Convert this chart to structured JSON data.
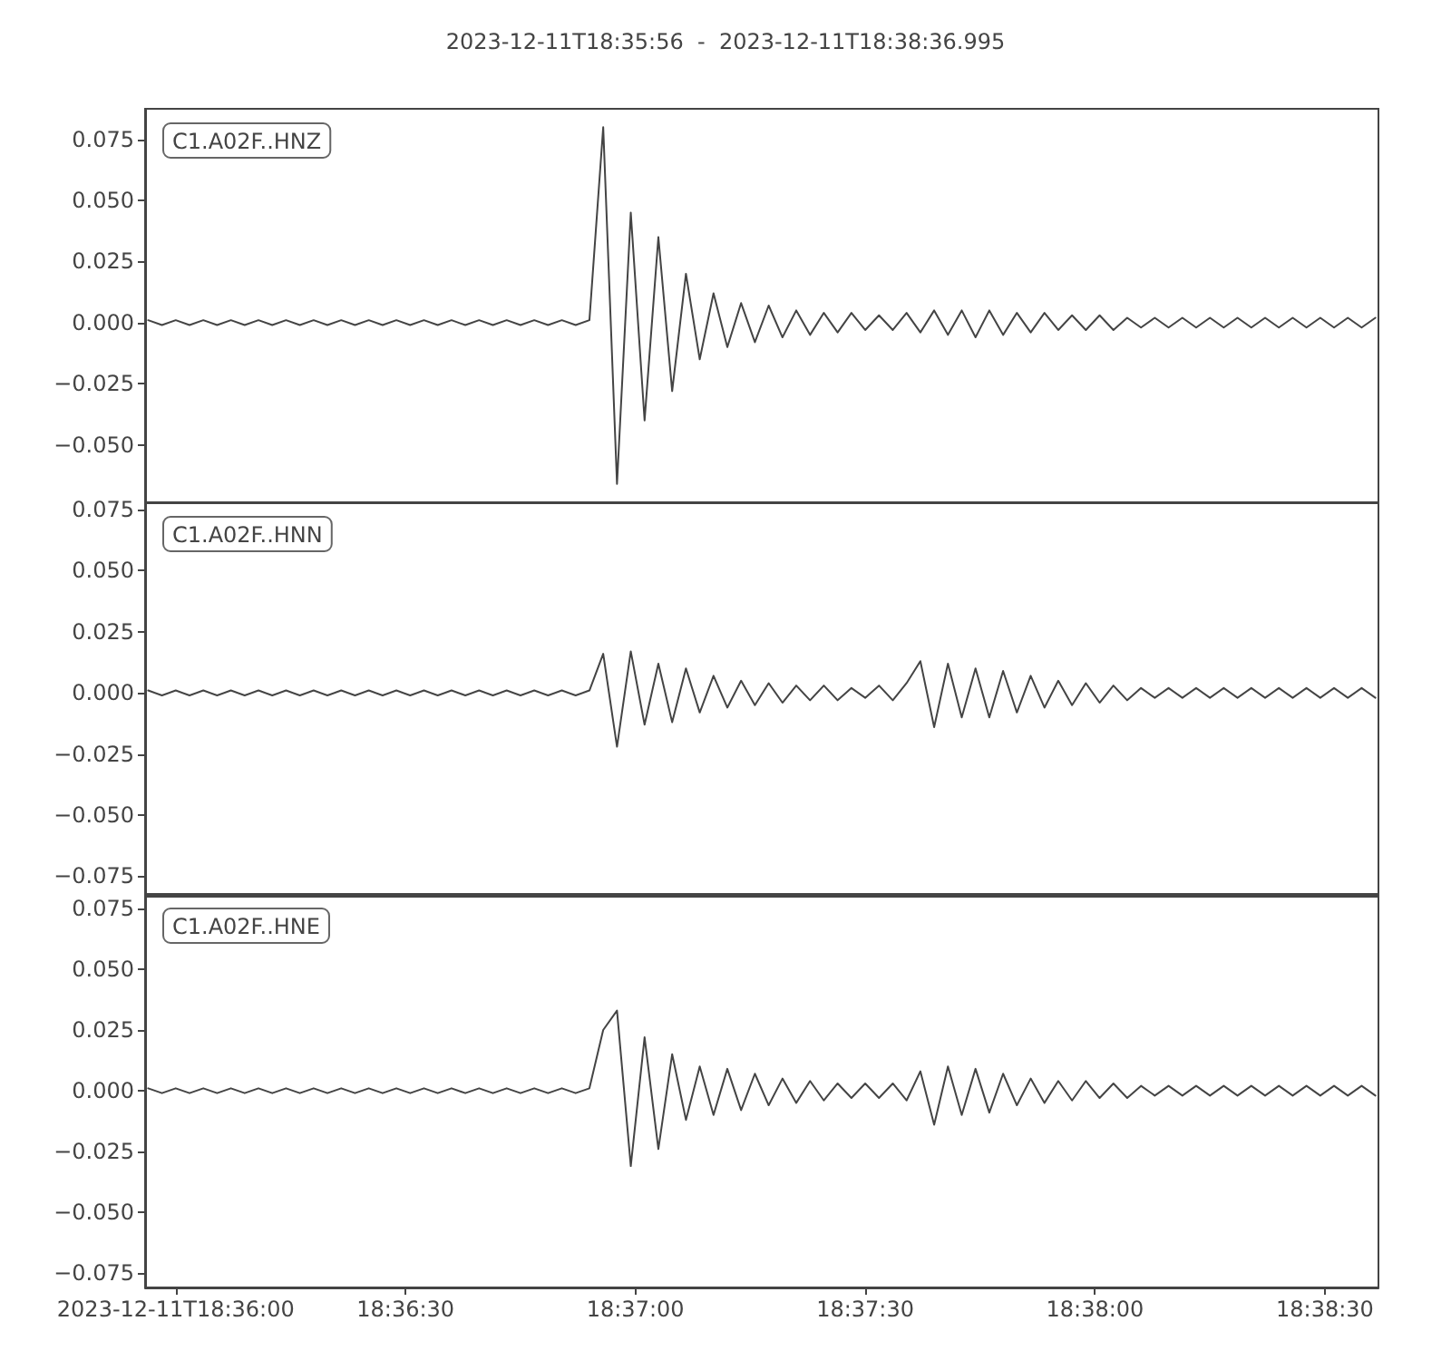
{
  "chart_data": [
    {
      "type": "line",
      "title": "2023-12-11T18:35:56  -  2023-12-11T18:38:36.995",
      "x": [
        18.599,
        18.5995,
        18.6,
        18.6005,
        18.601,
        18.6015,
        18.602,
        18.6025,
        18.603,
        18.6035,
        18.604,
        18.6045,
        18.605,
        18.6055,
        18.606,
        18.6065,
        18.607,
        18.6075,
        18.608,
        18.6085,
        18.609,
        18.6095,
        18.61,
        18.6105,
        18.611,
        18.6115,
        18.612,
        18.6125,
        18.613,
        18.6135,
        18.614,
        18.6145,
        18.615,
        18.6155,
        18.616,
        18.6165,
        18.617,
        18.6175,
        18.618,
        18.6185,
        18.619,
        18.6195,
        18.62,
        18.6205,
        18.621,
        18.6215,
        18.622,
        18.6225,
        18.623,
        18.6235,
        18.624,
        18.6245,
        18.625,
        18.6255,
        18.626,
        18.6265,
        18.627,
        18.6275,
        18.628,
        18.6285,
        18.629,
        18.6295,
        18.63,
        18.6305,
        18.631,
        18.6315,
        18.632,
        18.6325,
        18.633,
        18.6335,
        18.634,
        18.6345,
        18.635,
        18.6355,
        18.636,
        18.6365,
        18.637,
        18.6375,
        18.638,
        18.6385,
        18.639,
        18.6395,
        18.64,
        18.6405,
        18.641,
        18.6415,
        18.642,
        18.6425,
        18.643,
        18.6435
      ],
      "series": [
        {
          "name": "C1.A02F..HNZ",
          "color": "#444444",
          "values": [
            0.001,
            -0.001,
            0.001,
            -0.001,
            0.001,
            -0.001,
            0.001,
            -0.001,
            0.001,
            -0.001,
            0.001,
            -0.001,
            0.001,
            -0.001,
            0.001,
            -0.001,
            0.001,
            -0.001,
            0.001,
            -0.001,
            0.001,
            -0.001,
            0.001,
            -0.001,
            0.001,
            -0.001,
            0.001,
            -0.001,
            0.001,
            -0.001,
            0.001,
            -0.001,
            0.001,
            0.08,
            -0.066,
            0.045,
            -0.04,
            0.035,
            -0.028,
            0.02,
            -0.015,
            0.012,
            -0.01,
            0.008,
            -0.008,
            0.007,
            -0.006,
            0.005,
            -0.005,
            0.004,
            -0.004,
            0.004,
            -0.003,
            0.003,
            -0.003,
            0.004,
            -0.004,
            0.005,
            -0.005,
            0.005,
            -0.006,
            0.005,
            -0.005,
            0.004,
            -0.004,
            0.004,
            -0.003,
            0.003,
            -0.003,
            0.003,
            -0.003,
            0.002,
            -0.002,
            0.002,
            -0.002,
            0.002,
            -0.002,
            0.002,
            -0.002,
            0.002,
            -0.002,
            0.002,
            -0.002,
            0.002,
            -0.002,
            0.002,
            -0.002,
            0.002,
            -0.002,
            0.002
          ]
        }
      ],
      "xlim": [
        18.598889,
        18.64361
      ],
      "ylim": [
        -0.0735,
        0.0875
      ],
      "yticks": [
        {
          "value": -0.05,
          "label": "−0.050"
        },
        {
          "value": -0.025,
          "label": "−0.025"
        },
        {
          "value": 0,
          "label": "0.000"
        },
        {
          "value": 0.025,
          "label": "0.025"
        },
        {
          "value": 0.05,
          "label": "0.050"
        },
        {
          "value": 0.075,
          "label": "0.075"
        }
      ],
      "tick_labels": "y",
      "legend": "top left",
      "grid": false
    },
    {
      "type": "line",
      "x": [
        18.599,
        18.5995,
        18.6,
        18.6005,
        18.601,
        18.6015,
        18.602,
        18.6025,
        18.603,
        18.6035,
        18.604,
        18.6045,
        18.605,
        18.6055,
        18.606,
        18.6065,
        18.607,
        18.6075,
        18.608,
        18.6085,
        18.609,
        18.6095,
        18.61,
        18.6105,
        18.611,
        18.6115,
        18.612,
        18.6125,
        18.613,
        18.6135,
        18.614,
        18.6145,
        18.615,
        18.6155,
        18.616,
        18.6165,
        18.617,
        18.6175,
        18.618,
        18.6185,
        18.619,
        18.6195,
        18.62,
        18.6205,
        18.621,
        18.6215,
        18.622,
        18.6225,
        18.623,
        18.6235,
        18.624,
        18.6245,
        18.625,
        18.6255,
        18.626,
        18.6265,
        18.627,
        18.6275,
        18.628,
        18.6285,
        18.629,
        18.6295,
        18.63,
        18.6305,
        18.631,
        18.6315,
        18.632,
        18.6325,
        18.633,
        18.6335,
        18.634,
        18.6345,
        18.635,
        18.6355,
        18.636,
        18.6365,
        18.637,
        18.6375,
        18.638,
        18.6385,
        18.639,
        18.6395,
        18.64,
        18.6405,
        18.641,
        18.6415,
        18.642,
        18.6425,
        18.643,
        18.6435
      ],
      "series": [
        {
          "name": "C1.A02F..HNN",
          "color": "#444444",
          "values": [
            0.001,
            -0.001,
            0.001,
            -0.001,
            0.001,
            -0.001,
            0.001,
            -0.001,
            0.001,
            -0.001,
            0.001,
            -0.001,
            0.001,
            -0.001,
            0.001,
            -0.001,
            0.001,
            -0.001,
            0.001,
            -0.001,
            0.001,
            -0.001,
            0.001,
            -0.001,
            0.001,
            -0.001,
            0.001,
            -0.001,
            0.001,
            -0.001,
            0.001,
            -0.001,
            0.001,
            0.016,
            -0.022,
            0.017,
            -0.013,
            0.012,
            -0.012,
            0.01,
            -0.008,
            0.007,
            -0.006,
            0.005,
            -0.005,
            0.004,
            -0.004,
            0.003,
            -0.003,
            0.003,
            -0.003,
            0.002,
            -0.002,
            0.003,
            -0.003,
            0.004,
            0.013,
            -0.014,
            0.012,
            -0.01,
            0.01,
            -0.01,
            0.009,
            -0.008,
            0.007,
            -0.006,
            0.005,
            -0.005,
            0.004,
            -0.004,
            0.003,
            -0.003,
            0.002,
            -0.002,
            0.002,
            -0.002,
            0.002,
            -0.002,
            0.002,
            -0.002,
            0.002,
            -0.002,
            0.002,
            -0.002,
            0.002,
            -0.002,
            0.002,
            -0.002,
            0.002,
            -0.002
          ]
        }
      ],
      "xlim": [
        18.598889,
        18.64361
      ],
      "ylim": [
        -0.083,
        0.078
      ],
      "yticks": [
        {
          "value": -0.075,
          "label": "−0.075"
        },
        {
          "value": -0.05,
          "label": "−0.050"
        },
        {
          "value": -0.025,
          "label": "−0.025"
        },
        {
          "value": 0,
          "label": "0.000"
        },
        {
          "value": 0.025,
          "label": "0.025"
        },
        {
          "value": 0.05,
          "label": "0.050"
        },
        {
          "value": 0.075,
          "label": "0.075"
        }
      ],
      "tick_labels": "y",
      "legend": "top left",
      "grid": false
    },
    {
      "type": "line",
      "x": [
        18.599,
        18.5995,
        18.6,
        18.6005,
        18.601,
        18.6015,
        18.602,
        18.6025,
        18.603,
        18.6035,
        18.604,
        18.6045,
        18.605,
        18.6055,
        18.606,
        18.6065,
        18.607,
        18.6075,
        18.608,
        18.6085,
        18.609,
        18.6095,
        18.61,
        18.6105,
        18.611,
        18.6115,
        18.612,
        18.6125,
        18.613,
        18.6135,
        18.614,
        18.6145,
        18.615,
        18.6155,
        18.616,
        18.6165,
        18.617,
        18.6175,
        18.618,
        18.6185,
        18.619,
        18.6195,
        18.62,
        18.6205,
        18.621,
        18.6215,
        18.622,
        18.6225,
        18.623,
        18.6235,
        18.624,
        18.6245,
        18.625,
        18.6255,
        18.626,
        18.6265,
        18.627,
        18.6275,
        18.628,
        18.6285,
        18.629,
        18.6295,
        18.63,
        18.6305,
        18.631,
        18.6315,
        18.632,
        18.6325,
        18.633,
        18.6335,
        18.634,
        18.6345,
        18.635,
        18.6355,
        18.636,
        18.6365,
        18.637,
        18.6375,
        18.638,
        18.6385,
        18.639,
        18.6395,
        18.64,
        18.6405,
        18.641,
        18.6415,
        18.642,
        18.6425,
        18.643,
        18.6435
      ],
      "series": [
        {
          "name": "C1.A02F..HNE",
          "color": "#444444",
          "values": [
            0.001,
            -0.001,
            0.001,
            -0.001,
            0.001,
            -0.001,
            0.001,
            -0.001,
            0.001,
            -0.001,
            0.001,
            -0.001,
            0.001,
            -0.001,
            0.001,
            -0.001,
            0.001,
            -0.001,
            0.001,
            -0.001,
            0.001,
            -0.001,
            0.001,
            -0.001,
            0.001,
            -0.001,
            0.001,
            -0.001,
            0.001,
            -0.001,
            0.001,
            -0.001,
            0.001,
            0.025,
            0.033,
            -0.031,
            0.022,
            -0.024,
            0.015,
            -0.012,
            0.01,
            -0.01,
            0.009,
            -0.008,
            0.007,
            -0.006,
            0.005,
            -0.005,
            0.004,
            -0.004,
            0.003,
            -0.003,
            0.003,
            -0.003,
            0.003,
            -0.004,
            0.008,
            -0.014,
            0.01,
            -0.01,
            0.009,
            -0.009,
            0.007,
            -0.006,
            0.005,
            -0.005,
            0.004,
            -0.004,
            0.004,
            -0.003,
            0.003,
            -0.003,
            0.002,
            -0.002,
            0.002,
            -0.002,
            0.002,
            -0.002,
            0.002,
            -0.002,
            0.002,
            -0.002,
            0.002,
            -0.002,
            0.002,
            -0.002,
            0.002,
            -0.002,
            0.002,
            -0.002
          ]
        }
      ],
      "xlim": [
        18.598889,
        18.64361
      ],
      "xticks": [
        {
          "value": 18.6,
          "label": "2023-12-11T18:36:00"
        },
        {
          "value": 18.608333,
          "label": "18:36:30"
        },
        {
          "value": 18.616667,
          "label": "18:37:00"
        },
        {
          "value": 18.625,
          "label": "18:37:30"
        },
        {
          "value": 18.633333,
          "label": "18:38:00"
        },
        {
          "value": 18.641667,
          "label": "18:38:30"
        }
      ],
      "ylim": [
        -0.081,
        0.081
      ],
      "yticks": [
        {
          "value": -0.075,
          "label": "−0.075"
        },
        {
          "value": -0.05,
          "label": "−0.050"
        },
        {
          "value": -0.025,
          "label": "−0.025"
        },
        {
          "value": 0,
          "label": "0.000"
        },
        {
          "value": 0.025,
          "label": "0.025"
        },
        {
          "value": 0.05,
          "label": "0.050"
        },
        {
          "value": 0.075,
          "label": "0.075"
        }
      ],
      "legend": "top left",
      "grid": false
    }
  ]
}
